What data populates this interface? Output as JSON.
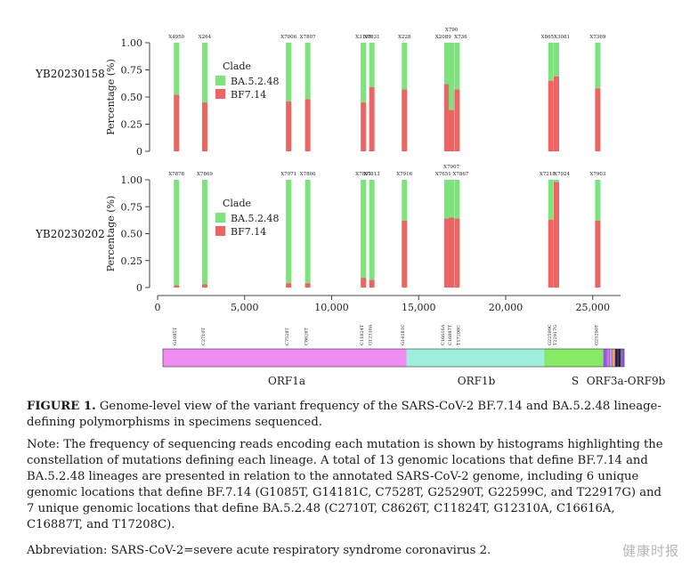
{
  "figure": {
    "label": "FIGURE 1.",
    "title": "Genome-level view of the variant frequency of the SARS-CoV-2 BF.7.14 and BA.5.2.48 lineage-defining polymorphisms in specimens sequenced.",
    "note": "Note: The frequency of sequencing reads encoding each mutation is shown by histograms highlighting the constellation of mutations defining each lineage. A total of 13 genomic locations that define BF.7.14 and BA.5.2.48 lineages are presented in relation to the annotated SARS-CoV-2 genome, including 6 unique genomic locations that define BF.7.14 (G1085T, G14181C, C7528T, G25290T, G22599C, and T22917G) and 7 unique genomic locations that define BA.5.2.48 (C2710T, C8626T, C11824T, G12310A, C16616A, C16887T, and T17208C).",
    "abbreviation": "Abbreviation: SARS-CoV-2=severe acute respiratory syndrome coronavirus 2."
  },
  "watermark": "健康时报",
  "colors": {
    "BA.5.2.48": "#7de47d",
    "BF7.14": "#ef6363"
  },
  "chart_data": {
    "type": "stacked-bar",
    "x_ticks": [
      0,
      5000,
      10000,
      15000,
      20000,
      25000
    ],
    "x_tick_labels": [
      "0",
      "5,000",
      "10,000",
      "15,000",
      "20,000",
      "25,000"
    ],
    "xlim": [
      0,
      26600
    ],
    "ylim": [
      0,
      1
    ],
    "y_ticks": [
      "0",
      "0.25",
      "0.50",
      "0.75",
      "1.00"
    ],
    "ylabel": "Percentage (%)",
    "legend_title": "Clade",
    "legend_entries": [
      "BA.5.2.48",
      "BF7.14"
    ],
    "panels": [
      {
        "specimen": "YB20230158",
        "bars": [
          {
            "pos": 1085,
            "label": "X4950",
            "bf": 0.52
          },
          {
            "pos": 2710,
            "label": "X264",
            "bf": 0.45
          },
          {
            "pos": 7528,
            "label": "X7006",
            "bf": 0.46
          },
          {
            "pos": 8626,
            "label": "X7807",
            "bf": 0.48
          },
          {
            "pos": 11824,
            "label": "X3198",
            "bf": 0.45
          },
          {
            "pos": 12310,
            "label": "X7831",
            "bf": 0.59
          },
          {
            "pos": 14181,
            "label": "X228",
            "bf": 0.57
          },
          {
            "pos": 16616,
            "label": "X2089",
            "bf": 0.62
          },
          {
            "pos": 16887,
            "label": "X790",
            "bf": 0.38
          },
          {
            "pos": 17208,
            "label": "X736",
            "bf": 0.57
          },
          {
            "pos": 22599,
            "label": "X865",
            "bf": 0.65
          },
          {
            "pos": 22917,
            "label": "X3081",
            "bf": 0.69
          },
          {
            "pos": 25290,
            "label": "X7369",
            "bf": 0.58
          }
        ]
      },
      {
        "specimen": "YB20230202",
        "bars": [
          {
            "pos": 1085,
            "label": "X7878",
            "bf": 0.02
          },
          {
            "pos": 2710,
            "label": "X7869",
            "bf": 0.03
          },
          {
            "pos": 7528,
            "label": "X7971",
            "bf": 0.04
          },
          {
            "pos": 8626,
            "label": "X7806",
            "bf": 0.04
          },
          {
            "pos": 11824,
            "label": "X7891",
            "bf": 0.09
          },
          {
            "pos": 12310,
            "label": "X7813",
            "bf": 0.07
          },
          {
            "pos": 14181,
            "label": "X7916",
            "bf": 0.62
          },
          {
            "pos": 16616,
            "label": "X7651",
            "bf": 0.64
          },
          {
            "pos": 16887,
            "label": "X7907",
            "bf": 0.65
          },
          {
            "pos": 17208,
            "label": "X7867",
            "bf": 0.64
          },
          {
            "pos": 22599,
            "label": "X7218",
            "bf": 0.63
          },
          {
            "pos": 22917,
            "label": "X7924",
            "bf": 0.98
          },
          {
            "pos": 25290,
            "label": "X7903",
            "bf": 0.62
          }
        ]
      }
    ],
    "mutation_labels": [
      "G1085T",
      "C2710T",
      "C7528T",
      "C8626T",
      "C11824T",
      "G12310A",
      "G14181C",
      "C16616A",
      "C16887T",
      "T17208C",
      "G22599C",
      "T22917G",
      "G25290T"
    ],
    "genome_regions": [
      {
        "name": "ORF1a",
        "start": 0,
        "end": 14000,
        "color": "#ee8cf2"
      },
      {
        "name": "ORF1b",
        "start": 14000,
        "end": 21900,
        "color": "#9ef0dc"
      },
      {
        "name": "S",
        "start": 21900,
        "end": 25300,
        "color": "#86ea64"
      },
      {
        "name": "ORF3a-ORF9b",
        "start": 25300,
        "end": 26500,
        "color": "#8b5fd6"
      }
    ],
    "region_labels": [
      "ORF1a",
      "ORF1b",
      "S",
      "ORF3a-ORF9b"
    ]
  }
}
